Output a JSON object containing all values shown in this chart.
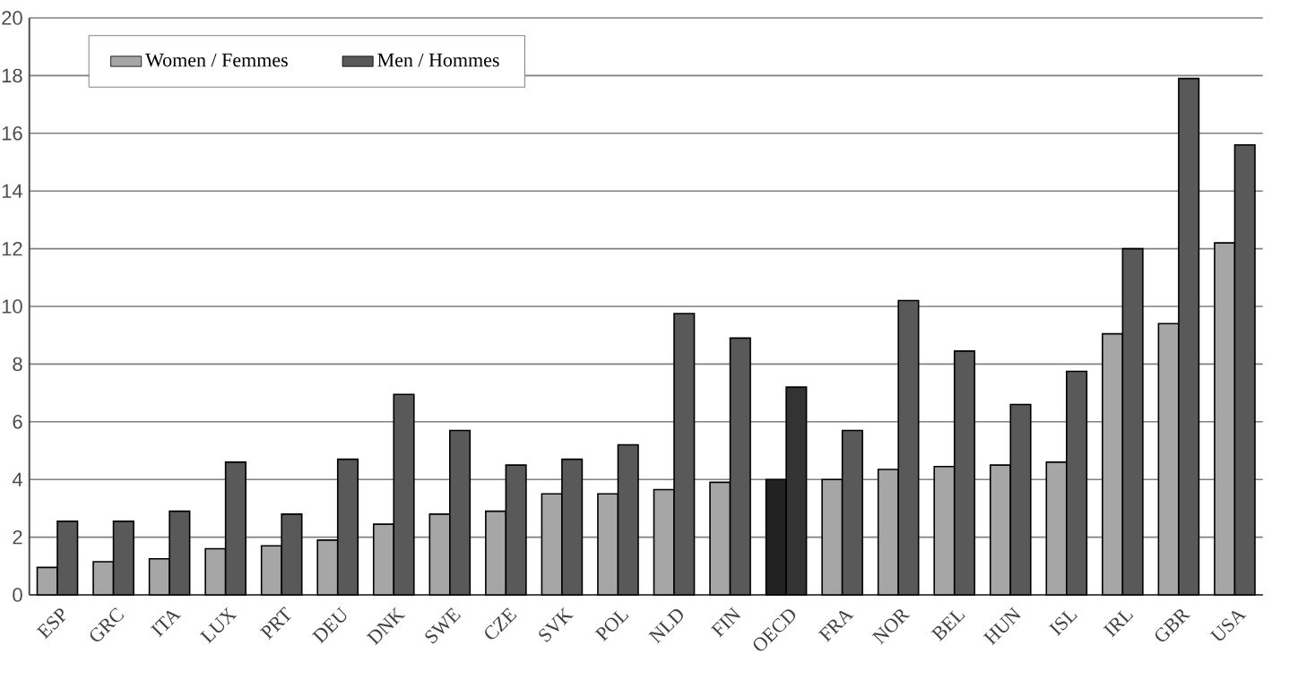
{
  "chart_data": {
    "type": "bar",
    "categories": [
      "ESP",
      "GRC",
      "ITA",
      "LUX",
      "PRT",
      "DEU",
      "DNK",
      "SWE",
      "CZE",
      "SVK",
      "POL",
      "NLD",
      "FIN",
      "OECD",
      "FRA",
      "NOR",
      "BEL",
      "HUN",
      "ISL",
      "IRL",
      "GBR",
      "USA"
    ],
    "series": [
      {
        "name": "Women / Femmes",
        "color": "#a6a6a6",
        "colors": [
          "#a6a6a6",
          "#a6a6a6",
          "#a6a6a6",
          "#a6a6a6",
          "#a6a6a6",
          "#a6a6a6",
          "#a6a6a6",
          "#a6a6a6",
          "#a6a6a6",
          "#a6a6a6",
          "#a6a6a6",
          "#a6a6a6",
          "#a6a6a6",
          "#222222",
          "#a6a6a6",
          "#a6a6a6",
          "#a6a6a6",
          "#a6a6a6",
          "#a6a6a6",
          "#a6a6a6",
          "#a6a6a6",
          "#a6a6a6"
        ],
        "values": [
          0.95,
          1.15,
          1.25,
          1.6,
          1.7,
          1.9,
          2.45,
          2.8,
          2.9,
          3.5,
          3.5,
          3.65,
          3.9,
          4.0,
          4.0,
          4.35,
          4.45,
          4.5,
          4.6,
          9.05,
          9.4,
          12.2
        ]
      },
      {
        "name": "Men / Hommes",
        "color": "#595959",
        "colors": [
          "#595959",
          "#595959",
          "#595959",
          "#595959",
          "#595959",
          "#595959",
          "#595959",
          "#595959",
          "#595959",
          "#595959",
          "#595959",
          "#595959",
          "#595959",
          "#333333",
          "#595959",
          "#595959",
          "#595959",
          "#595959",
          "#595959",
          "#595959",
          "#595959",
          "#595959"
        ],
        "values": [
          2.55,
          2.55,
          2.9,
          4.6,
          2.8,
          4.7,
          6.95,
          5.7,
          4.5,
          4.7,
          5.2,
          9.75,
          8.9,
          7.2,
          5.7,
          10.2,
          8.45,
          6.6,
          7.75,
          12.0,
          17.9,
          15.6
        ]
      }
    ],
    "ylim": [
      0,
      20
    ],
    "yticks": [
      0,
      2,
      4,
      6,
      8,
      10,
      12,
      14,
      16,
      18,
      20
    ],
    "grid": "y",
    "legend": "top left"
  }
}
